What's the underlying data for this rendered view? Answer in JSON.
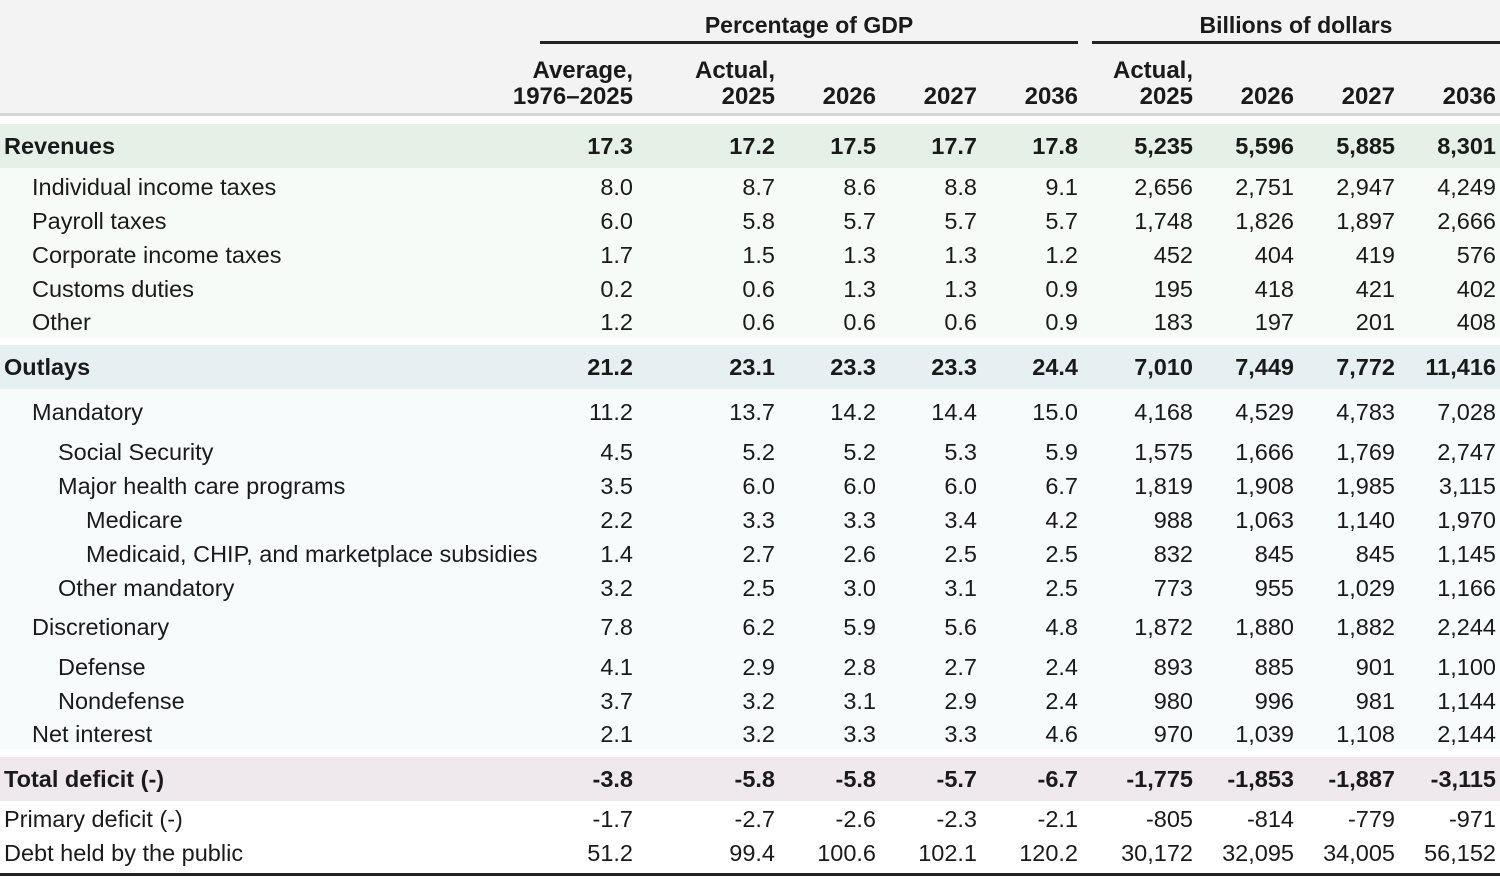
{
  "header": {
    "group_pct": "Percentage of GDP",
    "group_bil": "Billions of dollars",
    "columns": [
      [
        "Average,",
        "1976–2025"
      ],
      [
        "Actual,",
        "2025"
      ],
      [
        "2026"
      ],
      [
        "2027"
      ],
      [
        "2036"
      ],
      [
        "Actual,",
        "2025"
      ],
      [
        "2026"
      ],
      [
        "2027"
      ],
      [
        "2036"
      ]
    ]
  },
  "rows": [
    {
      "label": "Revenues",
      "level": 0,
      "style": "rev",
      "values": [
        "17.3",
        "17.2",
        "17.5",
        "17.7",
        "17.8",
        "5,235",
        "5,596",
        "5,885",
        "8,301"
      ]
    },
    {
      "label": "Individual income taxes",
      "level": 1,
      "values": [
        "8.0",
        "8.7",
        "8.6",
        "8.8",
        "9.1",
        "2,656",
        "2,751",
        "2,947",
        "4,249"
      ]
    },
    {
      "label": "Payroll taxes",
      "level": 1,
      "values": [
        "6.0",
        "5.8",
        "5.7",
        "5.7",
        "5.7",
        "1,748",
        "1,826",
        "1,897",
        "2,666"
      ]
    },
    {
      "label": "Corporate income taxes",
      "level": 1,
      "values": [
        "1.7",
        "1.5",
        "1.3",
        "1.3",
        "1.2",
        "452",
        "404",
        "419",
        "576"
      ]
    },
    {
      "label": "Customs duties",
      "level": 1,
      "values": [
        "0.2",
        "0.6",
        "1.3",
        "1.3",
        "0.9",
        "195",
        "418",
        "421",
        "402"
      ]
    },
    {
      "label": "Other",
      "level": 1,
      "values": [
        "1.2",
        "0.6",
        "0.6",
        "0.6",
        "0.9",
        "183",
        "197",
        "201",
        "408"
      ]
    },
    {
      "label": "Outlays",
      "level": 0,
      "style": "out",
      "values": [
        "21.2",
        "23.1",
        "23.3",
        "23.3",
        "24.4",
        "7,010",
        "7,449",
        "7,772",
        "11,416"
      ]
    },
    {
      "label": "Mandatory",
      "level": 1,
      "values": [
        "11.2",
        "13.7",
        "14.2",
        "14.4",
        "15.0",
        "4,168",
        "4,529",
        "4,783",
        "7,028"
      ]
    },
    {
      "label": "Social Security",
      "level": 2,
      "values": [
        "4.5",
        "5.2",
        "5.2",
        "5.3",
        "5.9",
        "1,575",
        "1,666",
        "1,769",
        "2,747"
      ]
    },
    {
      "label": "Major health care programs",
      "level": 2,
      "values": [
        "3.5",
        "6.0",
        "6.0",
        "6.0",
        "6.7",
        "1,819",
        "1,908",
        "1,985",
        "3,115"
      ]
    },
    {
      "label": "Medicare",
      "level": 3,
      "values": [
        "2.2",
        "3.3",
        "3.3",
        "3.4",
        "4.2",
        "988",
        "1,063",
        "1,140",
        "1,970"
      ]
    },
    {
      "label": "Medicaid, CHIP, and marketplace subsidies",
      "level": 3,
      "values": [
        "1.4",
        "2.7",
        "2.6",
        "2.5",
        "2.5",
        "832",
        "845",
        "845",
        "1,145"
      ]
    },
    {
      "label": "Other mandatory",
      "level": 2,
      "values": [
        "3.2",
        "2.5",
        "3.0",
        "3.1",
        "2.5",
        "773",
        "955",
        "1,029",
        "1,166"
      ]
    },
    {
      "label": "Discretionary",
      "level": 1,
      "values": [
        "7.8",
        "6.2",
        "5.9",
        "5.6",
        "4.8",
        "1,872",
        "1,880",
        "1,882",
        "2,244"
      ]
    },
    {
      "label": "Defense",
      "level": 2,
      "values": [
        "4.1",
        "2.9",
        "2.8",
        "2.7",
        "2.4",
        "893",
        "885",
        "901",
        "1,100"
      ]
    },
    {
      "label": "Nondefense",
      "level": 2,
      "values": [
        "3.7",
        "3.2",
        "3.1",
        "2.9",
        "2.4",
        "980",
        "996",
        "981",
        "1,144"
      ]
    },
    {
      "label": "Net interest",
      "level": 1,
      "values": [
        "2.1",
        "3.2",
        "3.3",
        "3.3",
        "4.6",
        "970",
        "1,039",
        "1,108",
        "2,144"
      ]
    },
    {
      "label": "Total deficit (-)",
      "level": 0,
      "style": "def",
      "values": [
        "-3.8",
        "-5.8",
        "-5.8",
        "-5.7",
        "-6.7",
        "-1,775",
        "-1,853",
        "-1,887",
        "-3,115"
      ]
    },
    {
      "label": "Primary deficit (-)",
      "level": 0,
      "values": [
        "-1.7",
        "-2.7",
        "-2.6",
        "-2.3",
        "-2.1",
        "-805",
        "-814",
        "-779",
        "-971"
      ]
    },
    {
      "label": "Debt held by the public",
      "level": 0,
      "values": [
        "51.2",
        "99.4",
        "100.6",
        "102.1",
        "120.2",
        "30,172",
        "32,095",
        "34,005",
        "56,152"
      ]
    }
  ]
}
